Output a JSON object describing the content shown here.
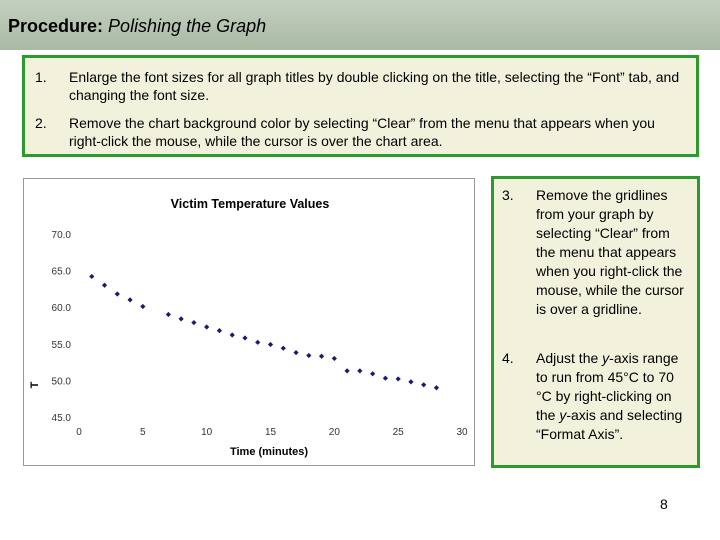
{
  "slide": {
    "title_bold": "Procedure:",
    "title_italic": "Polishing the Graph",
    "page_number": "8"
  },
  "steps_top": [
    {
      "num": "1.",
      "text": "Enlarge the font sizes for all graph titles by double clicking on the title, selecting the “Font” tab, and changing the font size."
    },
    {
      "num": "2.",
      "text": "Remove the chart background color by selecting “Clear” from the menu that appears when you right-click the mouse, while the cursor is over the chart area."
    }
  ],
  "steps_side": [
    {
      "num": "3.",
      "text": "Remove the gridlines from your graph by selecting “Clear” from the menu that appears when you right-click the mouse, while the cursor is over a gridline."
    },
    {
      "num": "4.",
      "text_before": "Adjust the ",
      "text_italic": "y",
      "text_after": "-axis range to run from 45°C to 70 °C by right-clicking on the ",
      "text_italic2": "y",
      "text_after2": "-axis and selecting “Format Axis”."
    }
  ],
  "colors": {
    "title_bar": "#b4c2ae",
    "box_fill": "#f1f1dc",
    "box_border": "#2d9a2d",
    "marker": "#1a1a6e"
  },
  "chart_data": {
    "type": "scatter",
    "title": "Victim Temperature Values",
    "xlabel": "Time (minutes)",
    "ylabel": "T",
    "xlim": [
      0,
      30
    ],
    "ylim": [
      45,
      70
    ],
    "x_ticks": [
      "0",
      "5",
      "10",
      "15",
      "20",
      "25",
      "30"
    ],
    "y_ticks": [
      "70.0",
      "65.0",
      "60.0",
      "55.0",
      "50.0",
      "45.0"
    ],
    "grid": false,
    "series": [
      {
        "marker": "diamond",
        "x": [
          1,
          2,
          3,
          4,
          5,
          7,
          8,
          9,
          10,
          11,
          12,
          13,
          14,
          15,
          16,
          17,
          18,
          19,
          20,
          21,
          22,
          23,
          24,
          25,
          26,
          27,
          28
        ],
        "y": [
          64.2,
          63.0,
          61.8,
          61.0,
          60.1,
          59.0,
          58.4,
          57.9,
          57.3,
          56.8,
          56.2,
          55.8,
          55.2,
          54.9,
          54.4,
          53.8,
          53.4,
          53.3,
          53.0,
          51.3,
          51.3,
          50.9,
          50.3,
          50.2,
          49.8,
          49.4,
          49.0
        ]
      }
    ]
  }
}
